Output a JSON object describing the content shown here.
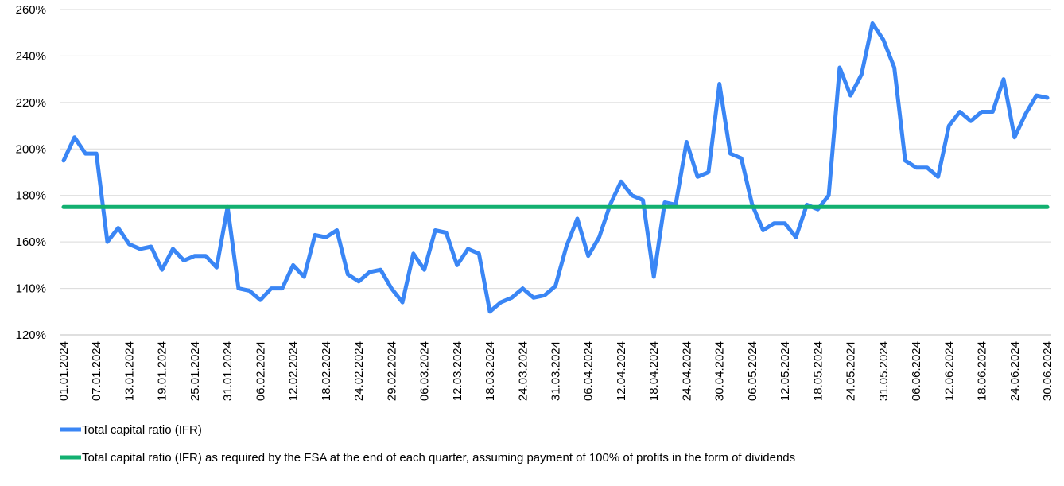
{
  "chart_data": {
    "type": "line",
    "categories": [
      "01.01.2024",
      null,
      null,
      "07.01.2024",
      null,
      null,
      "13.01.2024",
      null,
      null,
      "19.01.2024",
      null,
      null,
      "25.01.2024",
      null,
      null,
      "31.01.2024",
      null,
      null,
      "06.02.2024",
      null,
      null,
      "12.02.2024",
      null,
      null,
      "18.02.2024",
      null,
      null,
      "24.02.2024",
      null,
      null,
      "29.02.2024",
      null,
      null,
      "06.03.2024",
      null,
      null,
      "12.03.2024",
      null,
      null,
      "18.03.2024",
      null,
      null,
      "24.03.2024",
      null,
      null,
      "31.03.2024",
      null,
      null,
      "06.04.2024",
      null,
      null,
      "12.04.2024",
      null,
      null,
      "18.04.2024",
      null,
      null,
      "24.04.2024",
      null,
      null,
      "30.04.2024",
      null,
      null,
      "06.05.2024",
      null,
      null,
      "12.05.2024",
      null,
      null,
      "18.05.2024",
      null,
      null,
      "24.05.2024",
      null,
      null,
      "31.05.2024",
      null,
      null,
      "06.06.2024",
      null,
      null,
      "12.06.2024",
      null,
      null,
      "18.06.2024",
      null,
      null,
      "24.06.2024",
      null,
      null,
      "30.06.2024"
    ],
    "series": [
      {
        "name": "Total capital ratio (IFR)",
        "color": "#3a86f5",
        "values": [
          195,
          205,
          198,
          198,
          160,
          166,
          159,
          157,
          158,
          148,
          157,
          152,
          154,
          154,
          149,
          175,
          140,
          139,
          135,
          140,
          140,
          150,
          145,
          163,
          162,
          165,
          146,
          143,
          147,
          148,
          140,
          134,
          155,
          148,
          165,
          164,
          150,
          157,
          155,
          130,
          134,
          136,
          140,
          136,
          137,
          141,
          158,
          170,
          154,
          162,
          176,
          186,
          180,
          178,
          145,
          177,
          176,
          203,
          188,
          190,
          228,
          198,
          196,
          176,
          165,
          168,
          168,
          162,
          176,
          174,
          180,
          235,
          223,
          232,
          254,
          247,
          235,
          195,
          192,
          192,
          188,
          210,
          216,
          212,
          216,
          216,
          230,
          205,
          215,
          223,
          222
        ]
      },
      {
        "name": "Total capital ratio (IFR) as required by the FSA at the end of each quarter, assuming payment of 100% of profits in the form of dividends",
        "color": "#12b070",
        "values": [
          175,
          175,
          175,
          175,
          175,
          175,
          175,
          175,
          175,
          175,
          175,
          175,
          175,
          175,
          175,
          175,
          175,
          175,
          175,
          175,
          175,
          175,
          175,
          175,
          175,
          175,
          175,
          175,
          175,
          175,
          175,
          175,
          175,
          175,
          175,
          175,
          175,
          175,
          175,
          175,
          175,
          175,
          175,
          175,
          175,
          175,
          175,
          175,
          175,
          175,
          175,
          175,
          175,
          175,
          175,
          175,
          175,
          175,
          175,
          175,
          175,
          175,
          175,
          175,
          175,
          175,
          175,
          175,
          175,
          175,
          175,
          175,
          175,
          175,
          175,
          175,
          175,
          175,
          175,
          175,
          175,
          175,
          175,
          175,
          175,
          175,
          175,
          175,
          175,
          175,
          175
        ]
      }
    ],
    "ylim": [
      120,
      260
    ],
    "yticks": [
      {
        "value": 120,
        "label": "120%"
      },
      {
        "value": 140,
        "label": "140%"
      },
      {
        "value": 160,
        "label": "160%"
      },
      {
        "value": 180,
        "label": "180%"
      },
      {
        "value": 200,
        "label": "200%"
      },
      {
        "value": 220,
        "label": "220%"
      },
      {
        "value": 240,
        "label": "240%"
      },
      {
        "value": 260,
        "label": "260%"
      }
    ],
    "grid": true
  }
}
